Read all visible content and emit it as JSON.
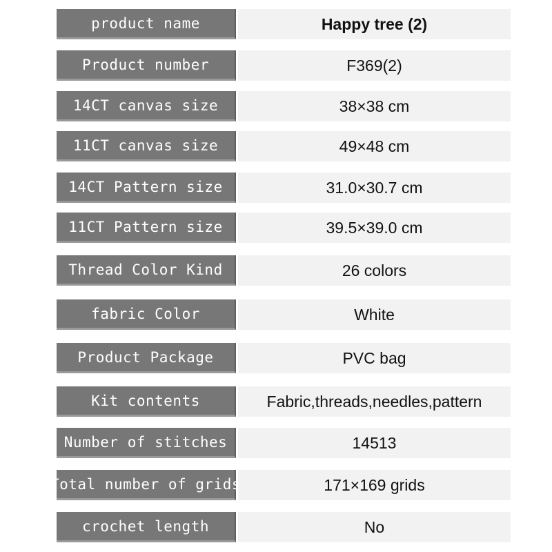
{
  "table": {
    "rows": [
      [
        "product name",
        "Happy tree (2)"
      ],
      [
        "Product number",
        "F369(2)"
      ],
      [
        "14CT canvas size",
        "38×38 cm"
      ],
      [
        "11CT canvas size",
        "49×48 cm"
      ],
      [
        "14CT Pattern size",
        "31.0×30.7 cm"
      ],
      [
        "11CT Pattern size",
        "39.5×39.0 cm"
      ],
      [
        "Thread Color Kind",
        "26 colors"
      ],
      [
        "fabric Color",
        "White"
      ],
      [
        "Product Package",
        "PVC bag"
      ],
      [
        "Kit contents",
        "Fabric,threads,needles,pattern"
      ],
      [
        "Number of stitches",
        "14513"
      ],
      [
        "Total number of grids",
        "171×169 grids"
      ],
      [
        "crochet length",
        "No"
      ]
    ]
  }
}
